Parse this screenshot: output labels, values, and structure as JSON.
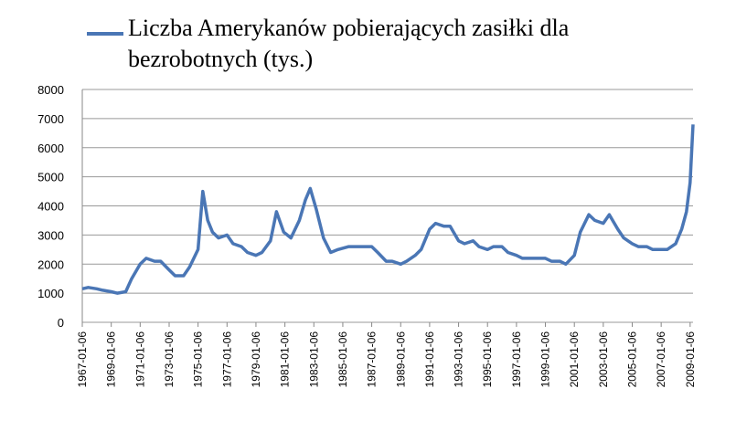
{
  "chart_data": {
    "type": "line",
    "x": [
      "1967-01-06",
      "1967-06-06",
      "1968-01-06",
      "1968-06-06",
      "1969-01-06",
      "1969-06-06",
      "1970-01-06",
      "1970-06-06",
      "1971-01-06",
      "1971-06-06",
      "1972-01-06",
      "1972-06-06",
      "1973-01-06",
      "1973-06-06",
      "1974-01-06",
      "1974-06-06",
      "1975-01-06",
      "1975-05-06",
      "1975-09-06",
      "1976-01-06",
      "1976-06-06",
      "1977-01-06",
      "1977-06-06",
      "1978-01-06",
      "1978-06-06",
      "1979-01-06",
      "1979-06-06",
      "1980-01-06",
      "1980-06-06",
      "1980-12-06",
      "1981-06-06",
      "1982-01-06",
      "1982-06-06",
      "1982-10-06",
      "1983-03-06",
      "1983-09-06",
      "1984-03-06",
      "1984-09-06",
      "1985-06-06",
      "1986-06-06",
      "1987-01-06",
      "1987-06-06",
      "1988-01-06",
      "1988-06-06",
      "1989-01-06",
      "1989-06-06",
      "1990-01-06",
      "1990-06-06",
      "1991-01-06",
      "1991-06-06",
      "1992-01-06",
      "1992-06-06",
      "1993-01-06",
      "1993-06-06",
      "1994-01-06",
      "1994-06-06",
      "1995-01-06",
      "1995-06-06",
      "1996-01-06",
      "1996-06-06",
      "1997-01-06",
      "1997-06-06",
      "1998-01-06",
      "1998-06-06",
      "1999-01-06",
      "1999-06-06",
      "2000-01-06",
      "2000-06-06",
      "2001-01-06",
      "2001-06-06",
      "2002-01-06",
      "2002-06-06",
      "2003-01-06",
      "2003-06-06",
      "2004-01-06",
      "2004-06-06",
      "2005-01-06",
      "2005-06-06",
      "2006-01-06",
      "2006-06-06",
      "2007-01-06",
      "2007-06-06",
      "2008-01-06",
      "2008-06-06",
      "2008-10-06",
      "2009-01-06",
      "2009-03-20"
    ],
    "series": [
      {
        "name": "Liczba Amerykanów pobierających zasiłki dla bezrobotnych (tys.)",
        "color": "#4a76b5",
        "values": [
          1150,
          1200,
          1150,
          1100,
          1050,
          1000,
          1050,
          1500,
          2000,
          2200,
          2100,
          2100,
          1800,
          1600,
          1600,
          1900,
          2500,
          4500,
          3500,
          3100,
          2900,
          3000,
          2700,
          2600,
          2400,
          2300,
          2400,
          2800,
          3800,
          3100,
          2900,
          3500,
          4200,
          4600,
          3900,
          2900,
          2400,
          2500,
          2600,
          2600,
          2600,
          2400,
          2100,
          2100,
          2000,
          2100,
          2300,
          2500,
          3200,
          3400,
          3300,
          3300,
          2800,
          2700,
          2800,
          2600,
          2500,
          2600,
          2600,
          2400,
          2300,
          2200,
          2200,
          2200,
          2200,
          2100,
          2100,
          2000,
          2300,
          3100,
          3700,
          3500,
          3400,
          3700,
          3200,
          2900,
          2700,
          2600,
          2600,
          2500,
          2500,
          2500,
          2700,
          3200,
          3800,
          4800,
          6800
        ]
      }
    ],
    "xlim": [
      "1967-01-06",
      "2009-03-20"
    ],
    "xticks": [
      "1967-01-06",
      "1969-01-06",
      "1971-01-06",
      "1973-01-06",
      "1975-01-06",
      "1977-01-06",
      "1979-01-06",
      "1981-01-06",
      "1983-01-06",
      "1985-01-06",
      "1987-01-06",
      "1989-01-06",
      "1991-01-06",
      "1993-01-06",
      "1995-01-06",
      "1997-01-06",
      "1999-01-06",
      "2001-01-06",
      "2003-01-06",
      "2005-01-06",
      "2007-01-06",
      "2009-01-06"
    ],
    "ylim": [
      0,
      8000
    ],
    "yticks": [
      0,
      1000,
      2000,
      3000,
      4000,
      5000,
      6000,
      7000,
      8000
    ],
    "grid": true
  }
}
